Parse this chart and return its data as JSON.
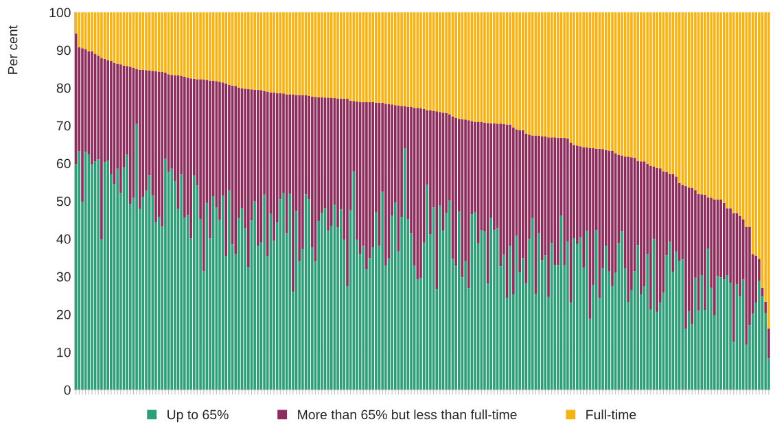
{
  "chart_data": {
    "type": "bar",
    "stacked": true,
    "ylabel": "Per cent",
    "ylim": [
      0,
      100
    ],
    "yticks": [
      0,
      10,
      20,
      30,
      40,
      50,
      60,
      70,
      80,
      90,
      100
    ],
    "grid": false,
    "legend": "bottom",
    "categories": [
      null,
      null,
      null,
      null,
      null,
      null,
      null,
      null,
      null,
      null,
      null,
      null,
      null,
      null,
      null,
      null,
      null,
      null,
      null,
      null,
      null,
      null,
      null,
      null,
      null,
      null,
      null,
      null,
      null,
      null,
      null,
      null,
      null,
      null,
      null,
      null,
      null,
      null,
      null,
      null,
      null,
      null,
      null,
      null,
      null,
      null,
      null,
      null,
      null,
      null,
      null,
      null,
      null,
      null,
      null,
      null,
      null,
      null,
      null,
      null,
      null,
      null,
      null,
      null,
      null,
      null,
      null,
      null,
      null,
      null,
      null,
      null,
      null,
      null,
      null,
      null,
      null,
      null,
      null,
      null,
      null,
      null,
      null,
      null,
      null,
      null,
      null,
      null,
      null,
      null,
      null,
      null,
      null,
      null,
      null,
      null,
      null,
      null,
      null,
      null,
      null,
      null,
      null,
      null,
      null,
      null,
      null,
      null,
      null,
      null,
      null,
      null,
      null,
      null,
      null,
      null,
      null,
      null,
      null,
      null,
      null,
      null,
      null,
      null,
      null,
      null,
      null,
      null,
      null,
      null,
      null,
      null,
      null,
      null,
      null,
      null,
      null,
      null,
      null,
      null,
      null,
      null,
      null,
      null,
      null,
      null,
      null,
      null,
      null,
      null,
      null,
      null,
      null,
      null,
      null,
      null,
      null,
      null,
      null,
      null,
      null,
      null,
      null,
      null,
      null,
      null,
      null,
      null,
      null,
      null,
      null,
      null,
      null,
      null,
      null,
      null,
      null,
      null,
      null,
      null,
      null,
      null,
      null,
      null,
      null,
      null,
      null,
      null,
      null,
      null,
      null,
      null,
      null,
      null,
      null,
      null,
      null,
      null,
      null,
      null,
      null,
      null,
      null,
      null,
      null,
      null,
      null,
      null,
      null,
      null,
      null,
      null,
      null,
      null,
      null,
      null,
      null,
      null
    ],
    "series": [
      {
        "name": "Up to 65%",
        "color": "#2e9e78",
        "values": [
          59.8,
          63.2,
          49.8,
          63.1,
          62.4,
          59.7,
          60.5,
          61.0,
          39.8,
          60.3,
          60.7,
          57.1,
          54.5,
          58.6,
          52.1,
          58.9,
          62.4,
          49.2,
          50.9,
          70.4,
          47.9,
          51.0,
          52.8,
          56.9,
          51.5,
          44.4,
          45.7,
          43.2,
          61.2,
          57.7,
          58.6,
          55.3,
          47.9,
          57.0,
          45.6,
          46.3,
          40.1,
          56.8,
          54.1,
          45.3,
          31.4,
          49.5,
          40.1,
          51.3,
          48.4,
          45.0,
          51.4,
          35.5,
          52.8,
          38.5,
          36.0,
          45.5,
          48.2,
          42.9,
          32.5,
          44.9,
          49.9,
          38.2,
          39.0,
          51.7,
          35.5,
          46.6,
          39.5,
          44.4,
          50.5,
          52.2,
          41.4,
          52.0,
          26.0,
          47.4,
          34.0,
          37.3,
          51.8,
          50.5,
          37.7,
          34.0,
          44.7,
          46.8,
          48.1,
          42.1,
          43.5,
          49.1,
          43.1,
          47.8,
          39.7,
          27.5,
          47.5,
          57.9,
          39.7,
          36.0,
          38.1,
          31.9,
          34.9,
          37.7,
          47.1,
          38.1,
          52.5,
          32.9,
          34.8,
          46.2,
          49.6,
          36.6,
          45.8,
          64.0,
          45.3,
          41.4,
          32.9,
          29.3,
          29.6,
          39.0,
          54.3,
          41.2,
          48.3,
          26.7,
          48.8,
          42.1,
          46.8,
          50.1,
          34.7,
          32.9,
          47.3,
          29.8,
          34.2,
          26.9,
          46.5,
          47.1,
          38.8,
          42.4,
          41.9,
          28.2,
          45.5,
          42.3,
          42.9,
          32.7,
          35.8,
          24.3,
          38.2,
          25.3,
          40.8,
          31.1,
          34.9,
          28.1,
          40.0,
          45.5,
          25.5,
          41.5,
          34.3,
          35.6,
          24.6,
          38.9,
          33.1,
          33.0,
          46.2,
          33.0,
          39.2,
          23.1,
          40.2,
          38.6,
          40.3,
          32.3,
          42.1,
          18.8,
          27.7,
          42.3,
          24.3,
          32.1,
          38.2,
          31.5,
          27.5,
          31.1,
          38.9,
          42.0,
          32.2,
          23.3,
          26.4,
          31.4,
          38.3,
          25.3,
          27.5,
          36.0,
          21.3,
          40.0,
          20.6,
          23.1,
          25.7,
          35.6,
          39.2,
          31.2,
          36.6,
          34.2,
          34.5,
          16.2,
          20.8,
          17.4,
          29.7,
          21.0,
          30.4,
          21.1,
          37.5,
          27.0,
          19.7,
          30.1,
          29.8,
          29.3,
          30.4,
          28.4,
          12.7,
          28.0,
          24.7,
          29.2,
          11.9,
          17.1,
          20.1,
          23.1,
          28.8,
          24.7,
          20.4,
          8.3
        ]
      },
      {
        "name": "More than 65% but less than full-time",
        "color": "#8c2d5e",
        "values": [
          34.6,
          27.6,
          40.7,
          27.2,
          27.3,
          30.0,
          28.5,
          27.5,
          48.1,
          27.4,
          26.6,
          30.0,
          32.1,
          27.8,
          34.1,
          27.0,
          23.4,
          36.4,
          34.4,
          14.6,
          36.9,
          33.8,
          31.9,
          27.7,
          33.0,
          40.0,
          38.6,
          41.0,
          22.8,
          25.9,
          24.8,
          28.0,
          35.4,
          26.2,
          37.3,
          36.4,
          42.4,
          25.6,
          28.2,
          37.0,
          50.8,
          32.6,
          41.8,
          30.6,
          33.4,
          36.6,
          30.0,
          45.7,
          28.0,
          42.1,
          44.5,
          34.6,
          31.7,
          36.9,
          47.2,
          34.7,
          29.6,
          41.3,
          40.4,
          27.5,
          43.5,
          32.2,
          39.3,
          34.2,
          28.1,
          26.3,
          36.9,
          26.3,
          52.2,
          30.7,
          44.1,
          40.8,
          26.2,
          27.4,
          40.0,
          43.6,
          32.8,
          30.7,
          29.3,
          35.3,
          33.8,
          28.2,
          34.1,
          29.4,
          37.4,
          49.6,
          29.1,
          18.6,
          36.7,
          40.3,
          38.1,
          44.3,
          41.3,
          38.5,
          29.0,
          37.9,
          23.5,
          42.9,
          40.9,
          29.4,
          25.8,
          38.7,
          29.4,
          11.1,
          29.6,
          33.5,
          41.8,
          45.4,
          45.0,
          35.4,
          19.7,
          32.8,
          25.6,
          47.1,
          24.8,
          31.3,
          26.5,
          22.9,
          37.7,
          39.2,
          24.5,
          41.9,
          37.4,
          44.5,
          24.7,
          23.9,
          32.2,
          28.6,
          28.9,
          42.5,
          25.1,
          28.3,
          27.6,
          37.8,
          34.6,
          46.0,
          32.1,
          44.2,
          28.2,
          37.7,
          33.9,
          39.8,
          27.6,
          21.9,
          41.9,
          25.8,
          32.9,
          31.5,
          42.3,
          28.0,
          33.8,
          33.8,
          20.6,
          33.8,
          27.4,
          42.4,
          24.7,
          26.1,
          24.2,
          32.0,
          22.1,
          45.2,
          36.3,
          21.6,
          39.6,
          31.7,
          25.3,
          31.9,
          35.9,
          31.6,
          23.4,
          20.1,
          29.6,
          38.5,
          35.2,
          30.1,
          22.3,
          35.2,
          33.0,
          23.9,
          38.1,
          19.1,
          38.2,
          35.6,
          32.2,
          22.1,
          18.0,
          26.0,
          19.9,
          20.6,
          19.8,
          37.8,
          32.8,
          36.1,
          23.2,
          30.9,
          21.4,
          30.6,
          13.5,
          23.9,
          30.7,
          20.3,
          20.6,
          20.2,
          17.7,
          19.7,
          34.1,
          18.8,
          21.4,
          15.9,
          31.3,
          26.1,
          15.9,
          12.4,
          5.9,
          2.3,
          2.9,
          7.9
        ]
      },
      {
        "name": "Full-time",
        "color": "#f5b416",
        "values": [
          5.6,
          9.2,
          9.5,
          9.7,
          10.3,
          10.3,
          11.0,
          11.5,
          12.1,
          12.3,
          12.7,
          12.9,
          13.4,
          13.6,
          13.8,
          14.1,
          14.2,
          14.4,
          14.7,
          15.0,
          15.2,
          15.2,
          15.3,
          15.4,
          15.5,
          15.6,
          15.7,
          15.8,
          16.0,
          16.4,
          16.6,
          16.7,
          16.7,
          16.8,
          17.1,
          17.3,
          17.5,
          17.6,
          17.7,
          17.7,
          17.8,
          17.9,
          18.1,
          18.1,
          18.2,
          18.4,
          18.6,
          18.8,
          19.2,
          19.4,
          19.5,
          19.9,
          20.1,
          20.2,
          20.3,
          20.4,
          20.5,
          20.5,
          20.6,
          20.8,
          21.0,
          21.2,
          21.2,
          21.4,
          21.4,
          21.5,
          21.7,
          21.7,
          21.8,
          21.9,
          21.9,
          21.9,
          22.0,
          22.1,
          22.3,
          22.4,
          22.5,
          22.5,
          22.6,
          22.6,
          22.7,
          22.7,
          22.8,
          22.8,
          22.9,
          22.9,
          23.4,
          23.5,
          23.6,
          23.7,
          23.8,
          23.8,
          23.8,
          23.8,
          23.9,
          24.0,
          24.0,
          24.2,
          24.3,
          24.4,
          24.6,
          24.7,
          24.8,
          24.9,
          25.1,
          25.1,
          25.3,
          25.3,
          25.4,
          25.6,
          26.0,
          26.0,
          26.1,
          26.2,
          26.4,
          26.6,
          26.7,
          27.0,
          27.6,
          27.9,
          28.2,
          28.3,
          28.4,
          28.6,
          28.8,
          29.0,
          29.0,
          29.0,
          29.2,
          29.3,
          29.4,
          29.4,
          29.5,
          29.5,
          29.6,
          29.7,
          29.7,
          30.5,
          31.0,
          31.2,
          31.2,
          32.1,
          32.4,
          32.6,
          32.6,
          32.7,
          32.8,
          32.9,
          33.1,
          33.1,
          33.1,
          33.2,
          33.2,
          33.2,
          33.4,
          34.5,
          35.1,
          35.3,
          35.5,
          35.7,
          35.8,
          36.0,
          36.0,
          36.1,
          36.1,
          36.2,
          36.5,
          36.6,
          36.6,
          37.3,
          37.7,
          37.9,
          38.2,
          38.2,
          38.4,
          38.5,
          39.4,
          39.5,
          39.5,
          40.1,
          40.6,
          40.9,
          41.2,
          41.3,
          42.1,
          42.3,
          42.8,
          42.8,
          43.5,
          45.2,
          45.7,
          46.0,
          46.4,
          46.5,
          47.1,
          48.1,
          48.2,
          48.3,
          49.0,
          49.1,
          49.6,
          49.6,
          49.6,
          50.5,
          51.9,
          51.9,
          53.2,
          53.2,
          53.9,
          54.9,
          56.8,
          56.8,
          64.0,
          64.5,
          65.3,
          73.0,
          76.7,
          83.8
        ]
      }
    ]
  }
}
